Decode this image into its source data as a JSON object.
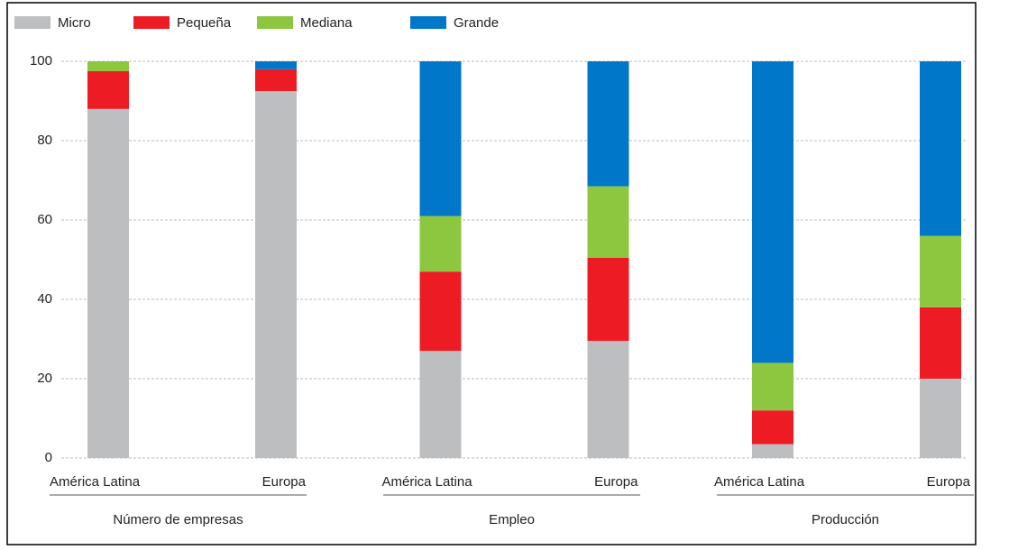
{
  "chart_data": {
    "type": "stacked_bar",
    "categories": [
      "América Latina",
      "Europa",
      "América Latina",
      "Europa",
      "América Latina",
      "Europa"
    ],
    "groups": [
      "Número de empresas",
      "Empleo",
      "Producción"
    ],
    "series": [
      {
        "name": "Micro",
        "color": "#bcbec0",
        "values": [
          88,
          92.5,
          27,
          29.5,
          3.5,
          20
        ]
      },
      {
        "name": "Pequeña",
        "color": "#ed1c24",
        "values": [
          9.5,
          5.5,
          20,
          21,
          8.5,
          18
        ]
      },
      {
        "name": "Mediana",
        "color": "#8dc63f",
        "values": [
          2.5,
          0,
          14,
          18,
          12,
          18
        ]
      },
      {
        "name": "Grande",
        "color": "#0077c8",
        "values": [
          0,
          2,
          39,
          31.5,
          76,
          44
        ]
      }
    ],
    "ylim": [
      0,
      100
    ],
    "yticks": [
      0,
      20,
      40,
      60,
      80,
      100
    ],
    "grid": true,
    "legend": "top"
  }
}
